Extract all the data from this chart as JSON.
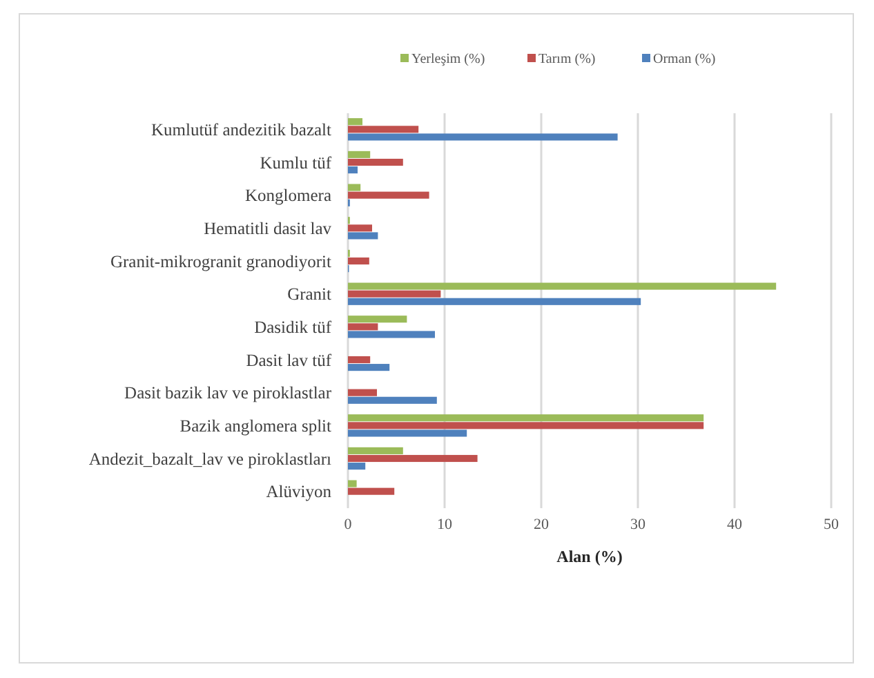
{
  "chart_data": {
    "type": "bar",
    "orientation": "horizontal",
    "xlabel": "Alan (%)",
    "categories": [
      "Kumlutüf andezitik bazalt",
      "Kumlu tüf",
      "Konglomera",
      "Hematitli dasit lav",
      "Granit-mikrogranit granodiyorit",
      "Granit",
      "Dasidik tüf",
      "Dasit lav tüf",
      "Dasit bazik lav ve piroklastlar",
      "Bazik anglomera split",
      "Andezit_bazalt_lav ve piroklastları",
      "Alüviyon"
    ],
    "series": [
      {
        "name": "Yerleşim (%)",
        "color": "#9bbb59",
        "values": [
          1.5,
          2.3,
          1.3,
          0.2,
          0.2,
          44.3,
          6.1,
          0,
          0,
          36.8,
          5.7,
          0.9
        ]
      },
      {
        "name": "Tarım (%)",
        "color": "#c0504d",
        "values": [
          7.3,
          5.7,
          8.4,
          2.5,
          2.2,
          9.6,
          3.1,
          2.3,
          3.0,
          36.8,
          13.4,
          4.8
        ]
      },
      {
        "name": "Orman (%)",
        "color": "#4f81bd",
        "values": [
          27.9,
          1.0,
          0.2,
          3.1,
          0.1,
          30.3,
          9.0,
          4.3,
          9.2,
          12.3,
          1.8,
          0
        ]
      }
    ],
    "xlim": [
      0,
      50
    ],
    "xticks": [
      0,
      10,
      20,
      30,
      40,
      50
    ],
    "grid": "x",
    "legend": "top"
  }
}
